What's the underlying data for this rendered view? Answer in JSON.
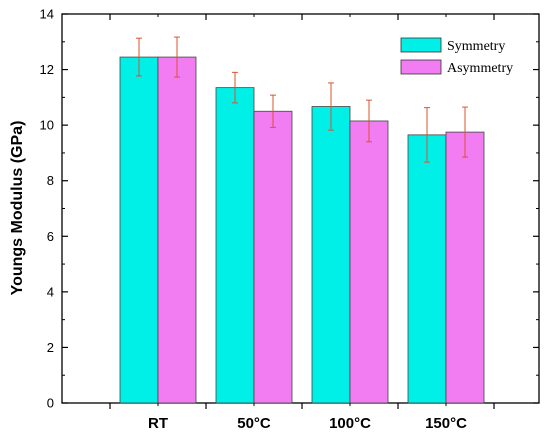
{
  "chart_data": {
    "type": "bar",
    "title": "",
    "xlabel": "",
    "ylabel": "Youngs Modulus (GPa)",
    "ylim": [
      0,
      14
    ],
    "yticks": [
      "0",
      "2",
      "4",
      "6",
      "8",
      "10",
      "12",
      "14"
    ],
    "categories": [
      "RT",
      "50°C",
      "100°C",
      "150°C"
    ],
    "series": [
      {
        "name": "Symmetry",
        "color": "#00f0e8",
        "values": [
          12.45,
          11.35,
          10.67,
          9.65
        ],
        "errors": [
          0.68,
          0.55,
          0.85,
          0.98
        ]
      },
      {
        "name": "Asymmetry",
        "color": "#f27cf2",
        "values": [
          12.45,
          10.5,
          10.15,
          9.75
        ],
        "errors": [
          0.72,
          0.58,
          0.75,
          0.9
        ]
      }
    ],
    "error_bar_color": "#d9552e",
    "legend_position": "top-right",
    "grid": false
  }
}
